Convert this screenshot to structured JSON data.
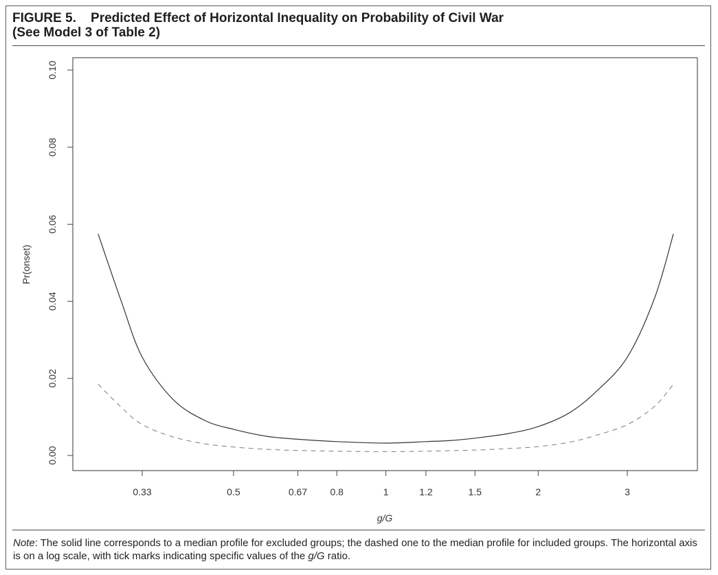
{
  "figure": {
    "title_line1": "FIGURE 5.    Predicted Effect of Horizontal Inequality on Probability of Civil War",
    "title_line2": "(See Model 3 of Table 2)",
    "note_label": "Note",
    "note_text_1": ": The solid line corresponds to a median profile for excluded groups; the dashed one to the median profile for included groups. The horizontal axis is on a log scale, with tick marks indicating specific values of the ",
    "note_italic": "g/G",
    "note_text_2": " ratio."
  },
  "chart_data": {
    "type": "line",
    "xlabel": "g/G",
    "ylabel": "Pr(onset)",
    "x_scale": "log",
    "xlim": [
      0.25,
      4.0
    ],
    "ylim": [
      0.0,
      0.1
    ],
    "x_ticks": [
      0.33,
      0.5,
      0.67,
      0.8,
      1,
      1.2,
      1.5,
      2,
      3
    ],
    "x_tick_labels": [
      "0.33",
      "0.5",
      "0.67",
      "0.8",
      "1",
      "1.2",
      "1.5",
      "2",
      "3"
    ],
    "y_ticks": [
      0.0,
      0.02,
      0.04,
      0.06,
      0.08,
      0.1
    ],
    "y_tick_labels": [
      "0.00",
      "0.02",
      "0.04",
      "0.06",
      "0.08",
      "0.10"
    ],
    "grid": false,
    "series": [
      {
        "style": "solid",
        "color": "#333333",
        "x": [
          0.27,
          0.3,
          0.33,
          0.38,
          0.44,
          0.5,
          0.58,
          0.67,
          0.8,
          1.0,
          1.2,
          1.35,
          1.5,
          1.75,
          2.0,
          2.3,
          2.6,
          3.0,
          3.4,
          3.7
        ],
        "y": [
          0.0575,
          0.04,
          0.0255,
          0.0145,
          0.009,
          0.0068,
          0.005,
          0.0042,
          0.0036,
          0.0032,
          0.0036,
          0.0039,
          0.0045,
          0.0057,
          0.0075,
          0.011,
          0.0165,
          0.0255,
          0.041,
          0.0575
        ]
      },
      {
        "style": "dashed",
        "color": "#7a7a7a",
        "x": [
          0.27,
          0.3,
          0.33,
          0.38,
          0.44,
          0.5,
          0.58,
          0.67,
          0.8,
          1.0,
          1.2,
          1.5,
          1.75,
          2.0,
          2.3,
          2.6,
          3.0,
          3.4,
          3.7
        ],
        "y": [
          0.0185,
          0.0125,
          0.008,
          0.0048,
          0.003,
          0.0022,
          0.0016,
          0.0013,
          0.0011,
          0.001,
          0.0011,
          0.0014,
          0.0018,
          0.0023,
          0.0034,
          0.0052,
          0.008,
          0.0128,
          0.0185
        ]
      }
    ]
  }
}
